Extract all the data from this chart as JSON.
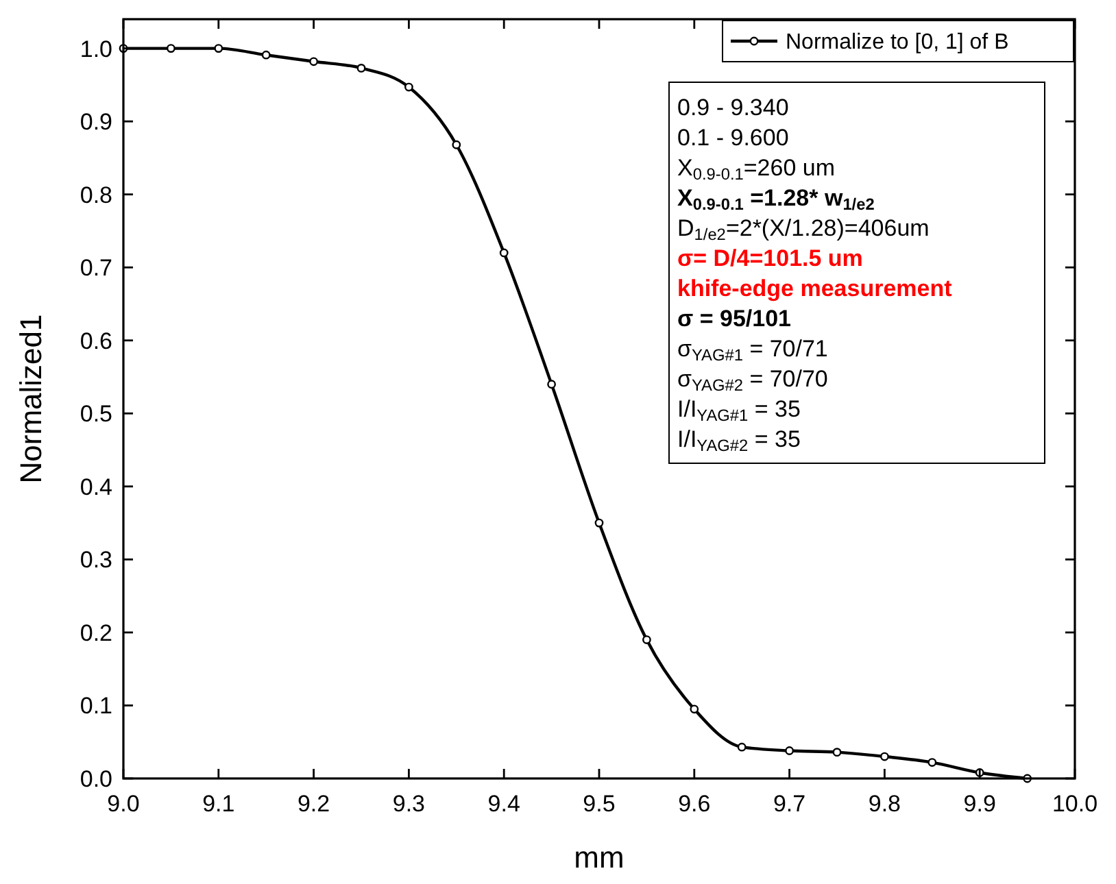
{
  "chart_data": {
    "type": "line",
    "xlabel": "mm",
    "ylabel": "Normalized1",
    "x": [
      9.0,
      9.05,
      9.1,
      9.15,
      9.2,
      9.25,
      9.3,
      9.35,
      9.4,
      9.45,
      9.5,
      9.55,
      9.6,
      9.65,
      9.7,
      9.75,
      9.8,
      9.85,
      9.9,
      9.95
    ],
    "series": [
      {
        "name": "Normalize to [0, 1] of B",
        "color": "#000000",
        "values": [
          1.0,
          1.0,
          1.0,
          0.991,
          0.982,
          0.973,
          0.947,
          0.868,
          0.72,
          0.54,
          0.35,
          0.19,
          0.095,
          0.043,
          0.038,
          0.036,
          0.03,
          0.022,
          0.008,
          0.0
        ]
      }
    ],
    "xlim": [
      9.0,
      10.0
    ],
    "ylim": [
      0,
      1.04
    ],
    "xticks": [
      {
        "value": 9.0,
        "label": "9.0"
      },
      9.1,
      9.2,
      9.3,
      9.4,
      9.5,
      9.6,
      9.7,
      9.8,
      9.9,
      {
        "value": 10.0,
        "label": "10.0"
      }
    ],
    "yticks": [
      {
        "value": 0,
        "label": "0.0"
      },
      0.1,
      0.2,
      0.3,
      0.4,
      0.5,
      0.6,
      0.7,
      0.8,
      0.9,
      {
        "value": 1.0,
        "label": "1.0"
      }
    ],
    "marker": "circle",
    "line_style": "solid",
    "grid": false,
    "legend": "top right",
    "annotations": [
      "0.9 - 9.340",
      "0.1 - 9.600",
      "X$_{0.9-0.1}$=260 um",
      "X$_{0.9-0.1}$ =1.28* w$_{1/e2}$",
      "D$_{1/e2}$=2*(X/1.28)=406um",
      "σ= D/4=101.5 um",
      "khife-edge measurement",
      "σ = 95/101",
      "σ$_{YAG#1}$ = 70/71",
      "σ$_{YAG#2}$ = 70/70",
      "I/I$_{YAG#1}$ = 35",
      "I/I$_{YAG#2}$ = 35"
    ]
  }
}
